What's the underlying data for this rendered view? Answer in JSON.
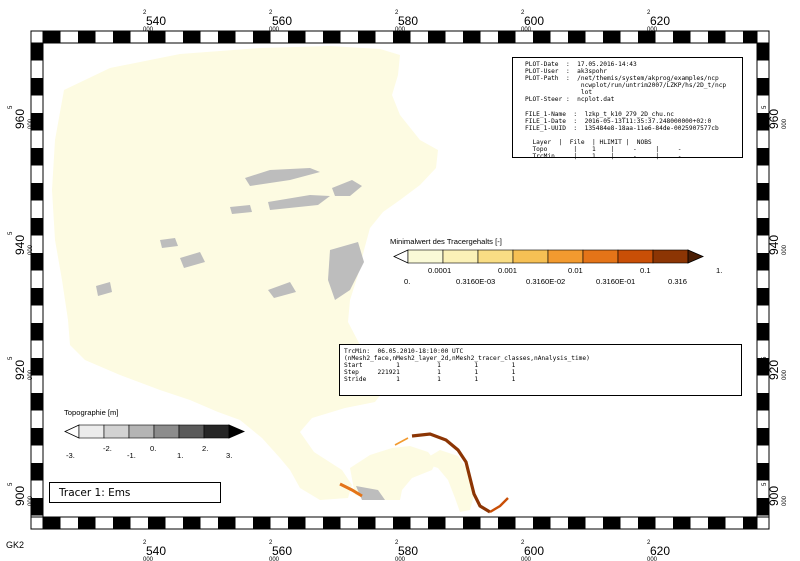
{
  "axes": {
    "x_major_top": "2",
    "x_sub_bottom": "000",
    "x_ticks": [
      "540",
      "560",
      "580",
      "600",
      "620"
    ],
    "y_major": "5",
    "y_sub": "000",
    "y_ticks": [
      "960",
      "940",
      "920",
      "900"
    ],
    "corner_label": "GK2"
  },
  "plot_info": {
    "meta_lines": [
      "PLOT-Date  :  17.05.2016-14:43",
      "PLOT-User  :  ak3spohr",
      "PLOT-Path  :  /net/themis/system/akprog/examples/ncp",
      "               ncwplot/run/untrim2007/LZKP/hs/2D_t/ncp",
      "               lot",
      "PLOT-Steer :  ncplot.dat",
      "",
      "FILE_1-Name  :  lzkp_t_k10_279_2D_chu.nc",
      "FILE_1-Date  :  2016-05-13T11:35:37.248000000+02:0",
      "FILE_1-UUID  :  135484e8-18aa-11e6-84de-0025907577cb",
      "",
      "  Layer  |  File  | HLIMIT |  NOBS",
      "  Topo       |    1    |     -     |     -",
      "  TrcMin     |    1    |     -     |     -"
    ]
  },
  "tracer_info": {
    "title": "TrcMin:  06.05.2010-18:10:00 UTC",
    "dims": "(nMesh2_face,nMesh2_layer_2d,nMesh2_tracer_classes,nAnalysis_time)",
    "rows": [
      "Start         1          1         1         1",
      "Step     221921          1         1         1",
      "Stride        1          1         1         1"
    ]
  },
  "tracer_legend": {
    "title": "Minimalwert des Tracergehalts [-]",
    "colors": [
      "#fafad7",
      "#fbf1b7",
      "#f9dd84",
      "#f6c054",
      "#f29a2f",
      "#e47418",
      "#c94f06",
      "#8c3504",
      "#4a1d04"
    ],
    "labels_top": [
      "0.0001",
      "0.001",
      "0.01",
      "0.1",
      "1."
    ],
    "labels_bottom": [
      "0.",
      "0.3160E-03",
      "0.3160E-02",
      "0.3160E-01",
      "0.316"
    ]
  },
  "topo_legend": {
    "title": "Topographie [m]",
    "colors": [
      "#ffffff",
      "#ececec",
      "#d2d2d2",
      "#b4b4b4",
      "#8c8c8c",
      "#5a5a5a",
      "#262626",
      "#000000"
    ],
    "labels": [
      "-3.",
      "-2.",
      "-1.",
      "0.",
      "1.",
      "2.",
      "3."
    ]
  },
  "tracer_label": "Tracer 1: Ems",
  "colors": {
    "water": "#fdfbe2",
    "shoal": "#bdbdbd",
    "frame_dark": "#000000"
  }
}
